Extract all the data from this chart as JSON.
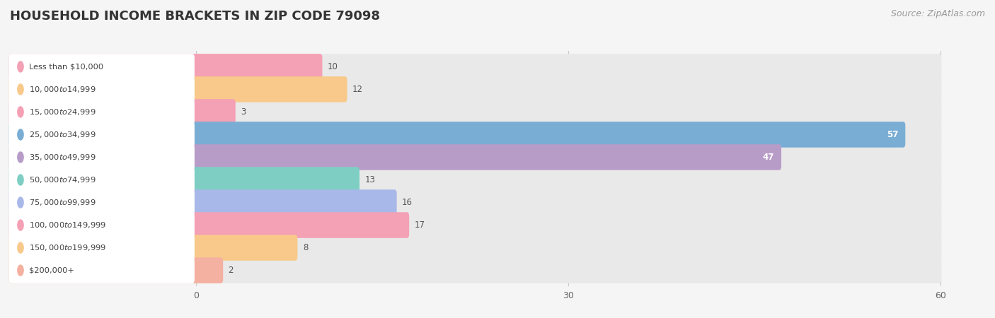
{
  "title": "HOUSEHOLD INCOME BRACKETS IN ZIP CODE 79098",
  "source": "Source: ZipAtlas.com",
  "categories": [
    "Less than $10,000",
    "$10,000 to $14,999",
    "$15,000 to $24,999",
    "$25,000 to $34,999",
    "$35,000 to $49,999",
    "$50,000 to $74,999",
    "$75,000 to $99,999",
    "$100,000 to $149,999",
    "$150,000 to $199,999",
    "$200,000+"
  ],
  "values": [
    10,
    12,
    3,
    57,
    47,
    13,
    16,
    17,
    8,
    2
  ],
  "bar_colors": [
    "#f4a0b5",
    "#f8c98a",
    "#f4a0b5",
    "#7aadd4",
    "#b89cc8",
    "#7ecec4",
    "#a8b8e8",
    "#f4a0b5",
    "#f8c98a",
    "#f4b0a0"
  ],
  "xlim_max": 60,
  "xticks": [
    0,
    30,
    60
  ],
  "background_color": "#f0f0f0",
  "row_bg_color": "#e8e8e8",
  "title_fontsize": 13,
  "source_fontsize": 9,
  "bar_height": 0.62,
  "label_inside_color": "#ffffff",
  "label_outside_color": "#555555",
  "inside_threshold": 30
}
